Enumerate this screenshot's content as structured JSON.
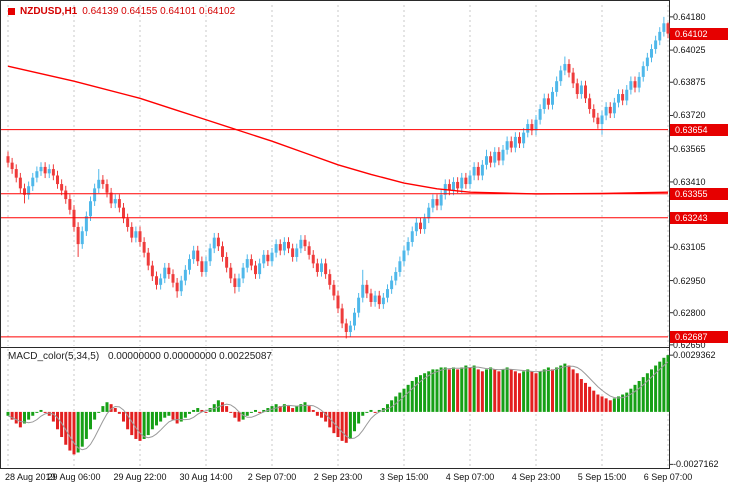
{
  "chart": {
    "symbol_title": "NZDUSD,H1",
    "ohlc_text": "0.64139 0.64155 0.64101 0.64102",
    "macd_label": "MACD_color(5,34,5)",
    "macd_values_text": "0.00000000 0.00000000 0.00225087"
  },
  "colors": {
    "candle_up": "#4fb8ea",
    "candle_down": "#ee3b3b",
    "line_red": "#ff0000",
    "badge_bg": "#e60000",
    "hist_up": "#16a016",
    "hist_down": "#e32020",
    "signal": "#9a9a9a",
    "grid": "#c9c9c9",
    "axis_text": "#111111",
    "title_red": "#d40000"
  },
  "price_axis": {
    "labels": [
      {
        "text": "0.64180",
        "value": 0.6418
      },
      {
        "text": "0.64025",
        "value": 0.64025
      },
      {
        "text": "0.63875",
        "value": 0.63875
      },
      {
        "text": "0.63720",
        "value": 0.6372
      },
      {
        "text": "0.63565",
        "value": 0.63565
      },
      {
        "text": "0.63410",
        "value": 0.6341
      },
      {
        "text": "0.63105",
        "value": 0.63105
      },
      {
        "text": "0.62950",
        "value": 0.6295
      },
      {
        "text": "0.62800",
        "value": 0.628
      },
      {
        "text": "0.62650",
        "value": 0.6265
      }
    ],
    "badges": [
      {
        "text": "0.64102",
        "value": 0.64102
      },
      {
        "text": "0.63654",
        "value": 0.63654
      },
      {
        "text": "0.63355",
        "value": 0.63355
      },
      {
        "text": "0.63243",
        "value": 0.63243
      },
      {
        "text": "0.62687",
        "value": 0.62687
      }
    ]
  },
  "macd_axis": {
    "labels": [
      {
        "text": "0.0029362",
        "value": 0.0029362
      },
      {
        "text": "-0.0027162",
        "value": -0.0027162
      }
    ]
  },
  "time_axis": {
    "labels": [
      {
        "text": "28 Aug 2019",
        "i": 0
      },
      {
        "text": "29 Aug 06:00",
        "i": 16
      },
      {
        "text": "29 Aug 22:00",
        "i": 32
      },
      {
        "text": "30 Aug 14:00",
        "i": 48
      },
      {
        "text": "2 Sep 07:00",
        "i": 64
      },
      {
        "text": "2 Sep 23:00",
        "i": 80
      },
      {
        "text": "3 Sep 15:00",
        "i": 96
      },
      {
        "text": "4 Sep 07:00",
        "i": 112
      },
      {
        "text": "4 Sep 23:00",
        "i": 128
      },
      {
        "text": "5 Sep 15:00",
        "i": 144
      },
      {
        "text": "6 Sep 07:00",
        "i": 160
      }
    ]
  },
  "chart_data": {
    "type": "candlestick",
    "title": "NZDUSD,H1",
    "price": {
      "ylim": [
        0.6264,
        0.6424
      ],
      "first_open": 0.6353,
      "default_wick": 0.00022,
      "closes": [
        0.635,
        0.6347,
        0.6343,
        0.6338,
        0.6335,
        0.6339,
        0.6343,
        0.6346,
        0.6348,
        0.6345,
        0.6347,
        0.6344,
        0.634,
        0.6337,
        0.6333,
        0.6328,
        0.632,
        0.6312,
        0.6318,
        0.6325,
        0.6332,
        0.6338,
        0.6342,
        0.634,
        0.6336,
        0.6331,
        0.6333,
        0.6329,
        0.6324,
        0.632,
        0.6315,
        0.6318,
        0.6313,
        0.6308,
        0.6302,
        0.6297,
        0.6293,
        0.6296,
        0.6301,
        0.6298,
        0.6294,
        0.629,
        0.6295,
        0.63,
        0.6305,
        0.6309,
        0.6304,
        0.6299,
        0.6304,
        0.631,
        0.6315,
        0.6311,
        0.6306,
        0.6301,
        0.6296,
        0.6292,
        0.6296,
        0.6301,
        0.6305,
        0.6302,
        0.6298,
        0.6303,
        0.6307,
        0.6304,
        0.6308,
        0.6312,
        0.6309,
        0.6313,
        0.631,
        0.6306,
        0.631,
        0.6314,
        0.6311,
        0.6307,
        0.6303,
        0.6299,
        0.6303,
        0.6298,
        0.6293,
        0.6288,
        0.6282,
        0.6275,
        0.6271,
        0.6274,
        0.628,
        0.6287,
        0.6293,
        0.6289,
        0.6285,
        0.6288,
        0.6284,
        0.6287,
        0.6291,
        0.6295,
        0.6299,
        0.6304,
        0.6309,
        0.6313,
        0.6318,
        0.6322,
        0.6319,
        0.6324,
        0.6329,
        0.6333,
        0.633,
        0.6335,
        0.634,
        0.6337,
        0.6341,
        0.6338,
        0.6343,
        0.634,
        0.6344,
        0.6348,
        0.6344,
        0.6349,
        0.6353,
        0.635,
        0.6355,
        0.6351,
        0.6356,
        0.636,
        0.6357,
        0.6362,
        0.6359,
        0.6364,
        0.6368,
        0.6365,
        0.637,
        0.6375,
        0.638,
        0.6377,
        0.6383,
        0.6388,
        0.6393,
        0.6396,
        0.6392,
        0.6387,
        0.6382,
        0.6386,
        0.638,
        0.6375,
        0.6371,
        0.6368,
        0.6372,
        0.6376,
        0.6373,
        0.6378,
        0.6382,
        0.6379,
        0.6384,
        0.6388,
        0.6385,
        0.639,
        0.6395,
        0.6399,
        0.6403,
        0.6407,
        0.6411,
        0.6415,
        0.64102
      ],
      "spikes": {
        "4": {
          "lo": 0.6331
        },
        "17": {
          "lo": 0.6306
        },
        "22": {
          "hi": 0.6347
        },
        "41": {
          "lo": 0.6287
        },
        "55": {
          "lo": 0.6289
        },
        "82": {
          "lo": 0.6268
        },
        "86": {
          "hi": 0.63
        },
        "116": {
          "hi": 0.6356
        },
        "135": {
          "hi": 0.63995
        },
        "144": {
          "lo": 0.6363
        },
        "159": {
          "hi": 0.6418
        },
        "160": {
          "hi": 0.64155
        }
      }
    },
    "hlines": [
      0.63654,
      0.63355,
      0.63243,
      0.62687
    ],
    "ma": {
      "points": [
        [
          0,
          0.6395
        ],
        [
          16,
          0.6388
        ],
        [
          32,
          0.638
        ],
        [
          40,
          0.6375
        ],
        [
          48,
          0.637
        ],
        [
          56,
          0.6365
        ],
        [
          64,
          0.636
        ],
        [
          72,
          0.63545
        ],
        [
          80,
          0.6349
        ],
        [
          88,
          0.63445
        ],
        [
          96,
          0.63405
        ],
        [
          104,
          0.63378
        ],
        [
          112,
          0.63362
        ],
        [
          128,
          0.63354
        ],
        [
          144,
          0.63356
        ],
        [
          160,
          0.63362
        ]
      ]
    },
    "macd": {
      "ylim": [
        -0.0028,
        0.0031
      ],
      "values": [
        -0.0002,
        -0.0004,
        -0.0006,
        -0.0008,
        -0.0006,
        -0.0004,
        -0.0002,
        0.0,
        0.0001,
        0.0,
        -0.0002,
        -0.0005,
        -0.0009,
        -0.0013,
        -0.0017,
        -0.002,
        -0.0022,
        -0.0021,
        -0.0018,
        -0.0014,
        -0.0009,
        -0.0004,
        0.0,
        0.0003,
        0.0005,
        0.0004,
        0.0002,
        -0.0001,
        -0.0005,
        -0.0009,
        -0.0012,
        -0.0014,
        -0.0015,
        -0.0014,
        -0.0012,
        -0.0009,
        -0.0007,
        -0.0005,
        -0.0003,
        -0.0002,
        -0.0004,
        -0.0006,
        -0.0005,
        -0.0003,
        -0.0001,
        0.0001,
        0.0002,
        0.0001,
        0.0,
        0.0002,
        0.0004,
        0.0006,
        0.0005,
        0.0003,
        0.0,
        -0.0003,
        -0.0005,
        -0.0004,
        -0.0002,
        0.0,
        0.0001,
        0.0,
        0.0001,
        0.0002,
        0.0003,
        0.0004,
        0.0003,
        0.0004,
        0.0003,
        0.0002,
        0.0003,
        0.0004,
        0.0005,
        0.0003,
        0.0001,
        -0.0002,
        -0.0003,
        -0.0005,
        -0.0008,
        -0.0011,
        -0.0013,
        -0.0015,
        -0.0016,
        -0.0014,
        -0.001,
        -0.0006,
        -0.0002,
        0.0,
        0.0001,
        0.0,
        0.0001,
        0.0002,
        0.0004,
        0.0006,
        0.0008,
        0.001,
        0.0012,
        0.0014,
        0.0016,
        0.0018,
        0.0019,
        0.002,
        0.0021,
        0.0022,
        0.0022,
        0.0023,
        0.0023,
        0.0022,
        0.0023,
        0.0022,
        0.0023,
        0.0024,
        0.0023,
        0.0024,
        0.0022,
        0.0021,
        0.0022,
        0.0023,
        0.0022,
        0.0021,
        0.0022,
        0.0023,
        0.0022,
        0.0021,
        0.002,
        0.0021,
        0.0022,
        0.0021,
        0.002,
        0.0021,
        0.0022,
        0.0023,
        0.0022,
        0.0023,
        0.0024,
        0.0025,
        0.0024,
        0.0022,
        0.002,
        0.0017,
        0.0015,
        0.0013,
        0.0011,
        0.0009,
        0.0008,
        0.0007,
        0.0006,
        0.0007,
        0.0008,
        0.0009,
        0.001,
        0.0012,
        0.0014,
        0.0016,
        0.0018,
        0.002,
        0.0022,
        0.0024,
        0.0026,
        0.0028,
        0.00294
      ]
    }
  }
}
